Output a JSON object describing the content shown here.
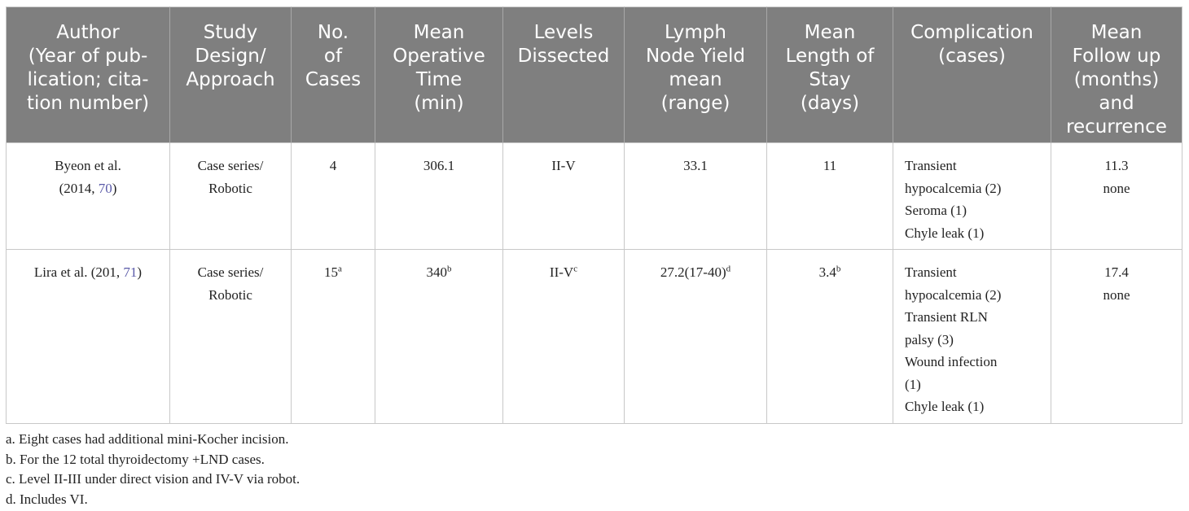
{
  "table": {
    "header": [
      [
        [
          "Author"
        ],
        [
          "(Year of pub-"
        ],
        [
          "lication; cita-"
        ],
        [
          "tion number)"
        ]
      ],
      [
        [
          "Study"
        ],
        [
          "Design/"
        ],
        [
          "Approach"
        ]
      ],
      [
        [
          "No."
        ],
        [
          "of"
        ],
        [
          "Cases"
        ]
      ],
      [
        [
          "Mean"
        ],
        [
          "Operative"
        ],
        [
          "Time"
        ],
        [
          "(min)"
        ]
      ],
      [
        [
          "Levels"
        ],
        [
          "Dissected"
        ]
      ],
      [
        [
          "Lymph"
        ],
        [
          "Node Yield"
        ],
        [
          "mean"
        ],
        [
          "(range)"
        ]
      ],
      [
        [
          "Mean"
        ],
        [
          "Length of"
        ],
        [
          "Stay"
        ],
        [
          "(days)"
        ]
      ],
      [
        [
          "Complication"
        ],
        [
          "(cases)"
        ]
      ],
      [
        [
          "Mean"
        ],
        [
          "Follow up"
        ],
        [
          "(months)"
        ],
        [
          "and"
        ],
        [
          "recurrence"
        ]
      ]
    ],
    "rows": [
      [
        [
          [
            "Byeon et al."
          ],
          [
            "(2014, ",
            {
              "link": "70"
            },
            ")"
          ]
        ],
        [
          [
            "Case series/"
          ],
          [
            "Robotic"
          ]
        ],
        [
          [
            "4"
          ]
        ],
        [
          [
            "306.1"
          ]
        ],
        [
          [
            "II-V"
          ]
        ],
        [
          [
            "33.1"
          ]
        ],
        [
          [
            "11"
          ]
        ],
        [
          [
            "Transient"
          ],
          [
            "hypocalcemia (2)"
          ],
          [
            "Seroma (1)"
          ],
          [
            "Chyle leak (1)"
          ]
        ],
        [
          [
            "11.3"
          ],
          [
            "none"
          ]
        ]
      ],
      [
        [
          [
            "Lira et al. (201, ",
            {
              "link": "71"
            },
            ")"
          ]
        ],
        [
          [
            "Case series/"
          ],
          [
            "Robotic"
          ]
        ],
        [
          [
            "15",
            {
              "sup": "a"
            }
          ]
        ],
        [
          [
            "340",
            {
              "sup": "b"
            }
          ]
        ],
        [
          [
            "II-V",
            {
              "sup": "c"
            }
          ]
        ],
        [
          [
            "27.2(17-40)",
            {
              "sup": "d"
            }
          ]
        ],
        [
          [
            "3.4",
            {
              "sup": "b"
            }
          ]
        ],
        [
          [
            "Transient"
          ],
          [
            "hypocalcemia (2)"
          ],
          [
            "Transient RLN"
          ],
          [
            "palsy (3)"
          ],
          [
            "Wound infection"
          ],
          [
            "(1)"
          ],
          [
            "Chyle leak (1)"
          ]
        ],
        [
          [
            "17.4"
          ],
          [
            "none"
          ]
        ]
      ]
    ]
  },
  "footnotes": [
    "a. Eight cases had additional mini-Kocher incision.",
    "b. For the 12 total thyroidectomy +LND cases.",
    "c. Level II-III under direct vision and IV-V via robot.",
    "d. Includes VI."
  ]
}
